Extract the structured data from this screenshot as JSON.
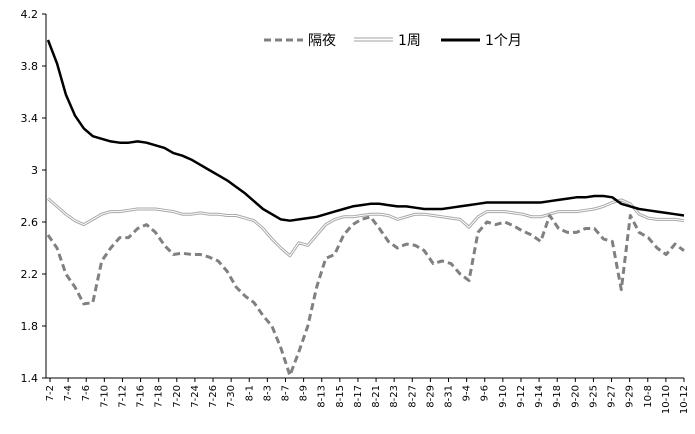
{
  "chart_data": {
    "type": "line",
    "title": "",
    "xlabel": "",
    "ylabel": "",
    "ylim": [
      1.4,
      4.2
    ],
    "yticks": [
      "1.4",
      "1.8",
      "2.2",
      "2.6",
      "3",
      "3.4",
      "3.8",
      "4.2"
    ],
    "xtick_labels": [
      "7-2",
      "7-4",
      "7-6",
      "7-10",
      "7-12",
      "7-16",
      "7-18",
      "7-20",
      "7-24",
      "7-26",
      "7-30",
      "8-1",
      "8-3",
      "8-7",
      "8-9",
      "8-13",
      "8-15",
      "8-17",
      "8-21",
      "8-23",
      "8-27",
      "8-29",
      "8-31",
      "9-4",
      "9-6",
      "9-10",
      "9-12",
      "9-14",
      "9-18",
      "9-20",
      "9-25",
      "9-27",
      "9-29",
      "10-8",
      "10-10",
      "10-12"
    ],
    "legend_position": "top-center",
    "grid": false,
    "series": [
      {
        "name": "隔夜",
        "style": "dashed",
        "color": "#808080",
        "values": [
          2.5,
          2.4,
          2.2,
          2.1,
          1.97,
          1.98,
          2.3,
          2.4,
          2.48,
          2.48,
          2.55,
          2.58,
          2.52,
          2.42,
          2.35,
          2.36,
          2.35,
          2.35,
          2.33,
          2.3,
          2.22,
          2.1,
          2.03,
          1.98,
          1.88,
          1.8,
          1.63,
          1.42,
          1.6,
          1.8,
          2.1,
          2.32,
          2.35,
          2.5,
          2.58,
          2.62,
          2.64,
          2.55,
          2.45,
          2.4,
          2.43,
          2.42,
          2.38,
          2.28,
          2.3,
          2.28,
          2.2,
          2.15,
          2.52,
          2.6,
          2.58,
          2.6,
          2.57,
          2.53,
          2.5,
          2.45,
          2.65,
          2.55,
          2.52,
          2.52,
          2.55,
          2.55,
          2.47,
          2.45,
          2.08,
          2.65,
          2.52,
          2.48,
          2.4,
          2.35,
          2.43,
          2.38
        ]
      },
      {
        "name": "1周",
        "style": "double",
        "color": "#a0a0a0",
        "values": [
          2.78,
          2.72,
          2.66,
          2.61,
          2.58,
          2.62,
          2.66,
          2.68,
          2.68,
          2.69,
          2.7,
          2.7,
          2.7,
          2.69,
          2.68,
          2.66,
          2.66,
          2.67,
          2.66,
          2.66,
          2.65,
          2.65,
          2.63,
          2.61,
          2.55,
          2.47,
          2.4,
          2.34,
          2.44,
          2.42,
          2.5,
          2.58,
          2.62,
          2.64,
          2.64,
          2.65,
          2.66,
          2.66,
          2.65,
          2.62,
          2.64,
          2.66,
          2.66,
          2.65,
          2.64,
          2.63,
          2.62,
          2.56,
          2.64,
          2.68,
          2.68,
          2.68,
          2.67,
          2.66,
          2.64,
          2.64,
          2.66,
          2.68,
          2.68,
          2.68,
          2.69,
          2.7,
          2.72,
          2.75,
          2.77,
          2.74,
          2.66,
          2.63,
          2.62,
          2.62,
          2.62,
          2.61
        ]
      },
      {
        "name": "1个月",
        "style": "solid",
        "color": "#000000",
        "values": [
          4.0,
          3.82,
          3.58,
          3.42,
          3.32,
          3.26,
          3.24,
          3.22,
          3.21,
          3.21,
          3.22,
          3.21,
          3.19,
          3.17,
          3.13,
          3.11,
          3.08,
          3.04,
          3.0,
          2.96,
          2.92,
          2.87,
          2.82,
          2.76,
          2.7,
          2.66,
          2.62,
          2.61,
          2.62,
          2.63,
          2.64,
          2.66,
          2.68,
          2.7,
          2.72,
          2.73,
          2.74,
          2.74,
          2.73,
          2.72,
          2.72,
          2.71,
          2.7,
          2.7,
          2.7,
          2.71,
          2.72,
          2.73,
          2.74,
          2.75,
          2.75,
          2.75,
          2.75,
          2.75,
          2.75,
          2.75,
          2.76,
          2.77,
          2.78,
          2.79,
          2.79,
          2.8,
          2.8,
          2.79,
          2.74,
          2.72,
          2.7,
          2.69,
          2.68,
          2.67,
          2.66,
          2.65
        ]
      }
    ]
  }
}
